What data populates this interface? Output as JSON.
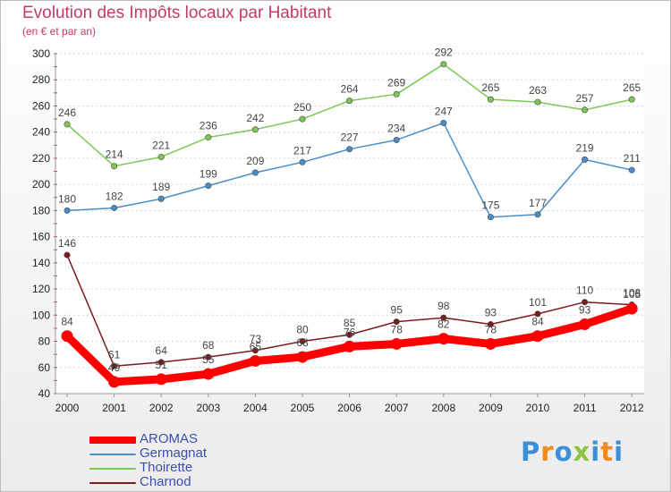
{
  "chart_data": {
    "type": "line",
    "title": "Evolution des Impôts locaux par Habitant",
    "subtitle": "(en € et par an)",
    "xlabel": "",
    "ylabel": "",
    "categories": [
      "2000",
      "2001",
      "2002",
      "2003",
      "2004",
      "2005",
      "2006",
      "2007",
      "2008",
      "2009",
      "2010",
      "2011",
      "2012"
    ],
    "ylim": [
      40,
      300
    ],
    "yticks": [
      40,
      60,
      80,
      100,
      120,
      140,
      160,
      180,
      200,
      220,
      240,
      260,
      280,
      300
    ],
    "grid": "horizontal",
    "legend_position": "bottom-left",
    "series": [
      {
        "name": "AROMAS",
        "color": "#ff0000",
        "values": [
          84,
          49,
          51,
          55,
          65,
          68,
          76,
          78,
          82,
          78,
          84,
          93,
          105
        ]
      },
      {
        "name": "Germagnat",
        "color": "#4a8ec9",
        "values": [
          180,
          182,
          189,
          199,
          209,
          217,
          227,
          234,
          247,
          175,
          177,
          219,
          211
        ]
      },
      {
        "name": "Thoirette",
        "color": "#7dc855",
        "values": [
          246,
          214,
          221,
          236,
          242,
          250,
          264,
          269,
          292,
          265,
          263,
          257,
          265
        ]
      },
      {
        "name": "Charnod",
        "color": "#7a1c1c",
        "values": [
          146,
          61,
          64,
          68,
          73,
          80,
          85,
          95,
          98,
          93,
          101,
          110,
          108
        ]
      }
    ]
  },
  "logo": {
    "letters": [
      "P",
      "r",
      "o",
      "x",
      "i",
      "t",
      "i"
    ],
    "colors": [
      "#3a8fd6",
      "#f08a1c",
      "#3a8fd6",
      "#8cc63f",
      "#3a8fd6",
      "#f08a1c",
      "#3a8fd6"
    ]
  }
}
